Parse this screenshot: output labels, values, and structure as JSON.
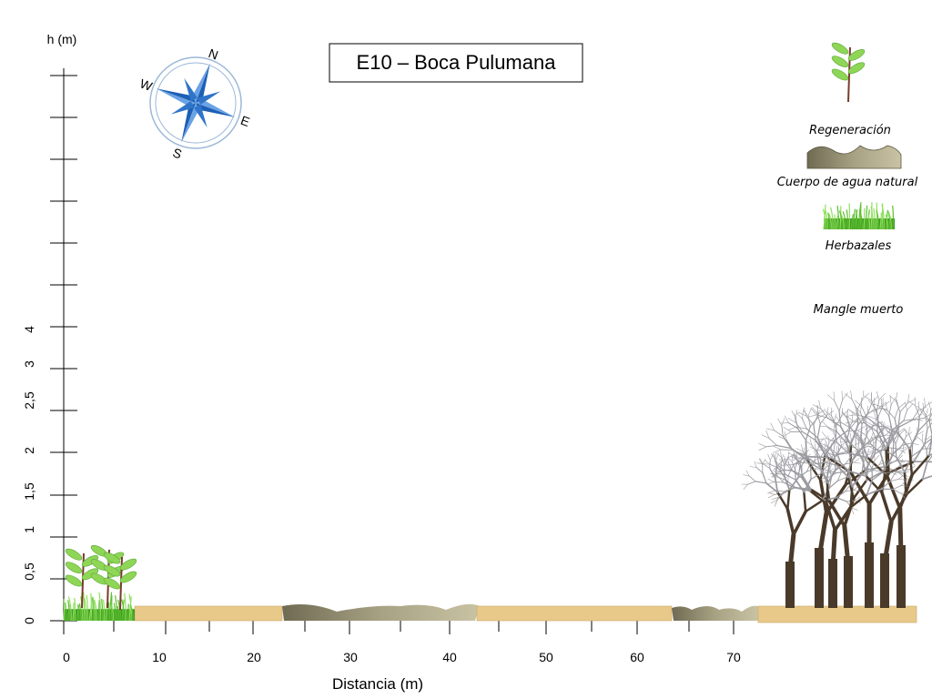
{
  "title": "E10 – Boca Pulumana",
  "y_axis": {
    "label": "h (m)",
    "ticks": [
      "0",
      "0,5",
      "1",
      "1,5",
      "2",
      "2,5",
      "3",
      "4"
    ]
  },
  "x_axis": {
    "label": "Distancia (m)",
    "ticks": [
      "0",
      "10",
      "20",
      "30",
      "40",
      "50",
      "60",
      "70"
    ]
  },
  "legend": {
    "items": [
      "Regeneración",
      "Cuerpo de agua natural",
      "Herbazales",
      "Mangle muerto"
    ]
  },
  "compass": [
    "N",
    "E",
    "S",
    "W"
  ]
}
